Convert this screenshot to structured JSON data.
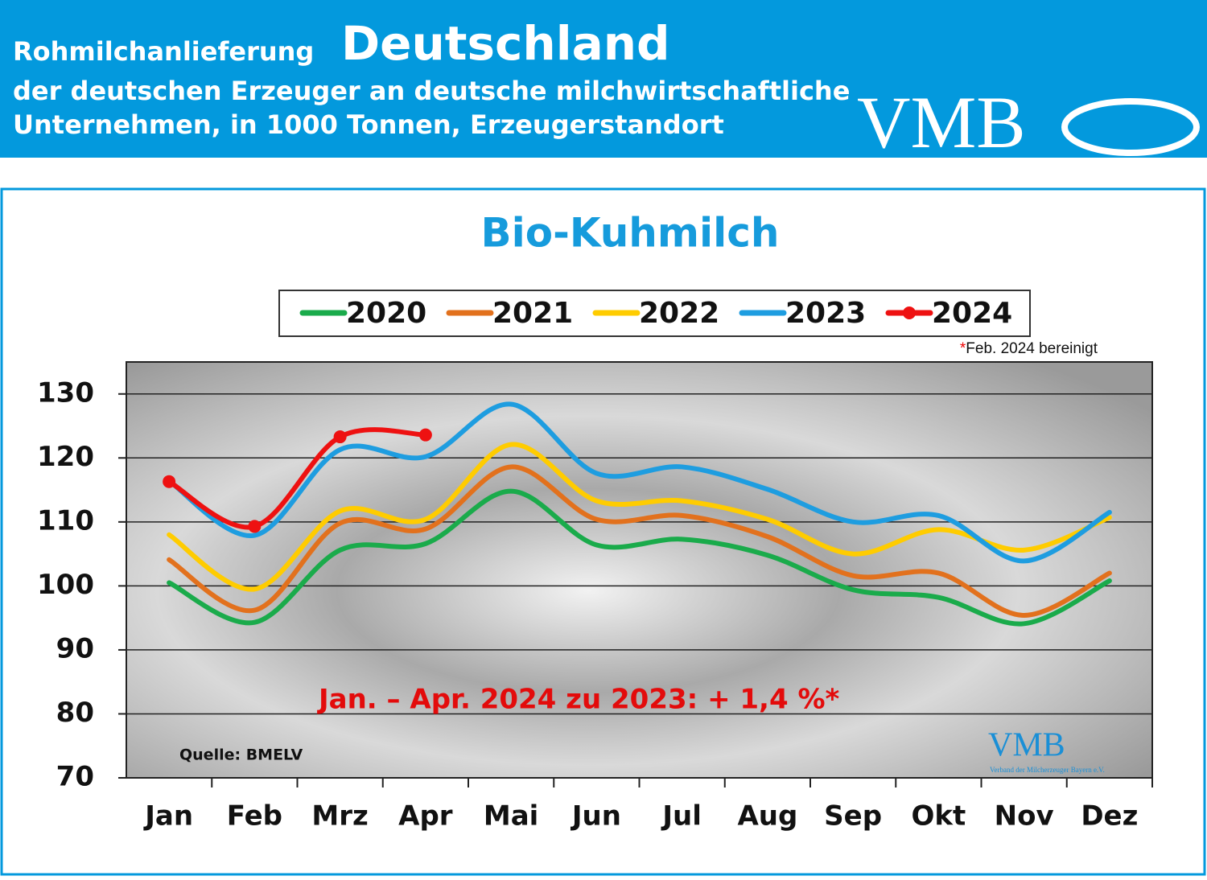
{
  "header": {
    "title_small": "Rohmilchanlieferung",
    "title_big": "Deutschland",
    "line2": "der deutschen Erzeuger an deutsche milchwirtschaftliche",
    "line3": "Unternehmen, in 1000 Tonnen, Erzeugerstandort",
    "logo": "VMB"
  },
  "chart_data": {
    "type": "line",
    "title": "Bio-Kuhmilch",
    "categories": [
      "Jan",
      "Feb",
      "Mrz",
      "Apr",
      "Mai",
      "Jun",
      "Jul",
      "Aug",
      "Sep",
      "Okt",
      "Nov",
      "Dez"
    ],
    "series": [
      {
        "name": "2020",
        "color": "#1aab4b",
        "values": [
          100.5,
          94.3,
          105.6,
          106.6,
          114.8,
          106.4,
          107.3,
          104.8,
          99.4,
          98.2,
          94.1,
          100.8
        ]
      },
      {
        "name": "2021",
        "color": "#e2711d",
        "values": [
          104.1,
          96.2,
          109.8,
          108.9,
          118.6,
          110.4,
          111,
          107.7,
          101.6,
          102,
          95.4,
          102
        ]
      },
      {
        "name": "2022",
        "color": "#ffcc00",
        "values": [
          108,
          99.5,
          111.7,
          110.4,
          122.1,
          113.3,
          113.3,
          110.4,
          105,
          108.8,
          105.6,
          110.7
        ]
      },
      {
        "name": "2023",
        "color": "#1e9de0",
        "values": [
          116.4,
          107.9,
          121.3,
          120.2,
          128.4,
          117.6,
          118.6,
          115.1,
          110,
          111,
          103.9,
          111.5
        ]
      },
      {
        "name": "2024",
        "color": "#ee1111",
        "marker": true,
        "values": [
          116.3,
          109.3,
          123.3,
          123.6,
          null,
          null,
          null,
          null,
          null,
          null,
          null,
          null
        ]
      }
    ],
    "ylim": [
      70,
      135
    ],
    "yticks": [
      70,
      80,
      90,
      100,
      110,
      120,
      130
    ],
    "grid": true,
    "legend": "top",
    "note_mark": "*",
    "note": "Feb. 2024 bereinigt",
    "annotation": "Jan. – Apr. 2024 zu 2023: + 1,4 %*",
    "source": "Quelle: BMELV",
    "watermark": "VMB",
    "watermark_sub": "Verband der Milcherzeuger Bayern e.V."
  }
}
